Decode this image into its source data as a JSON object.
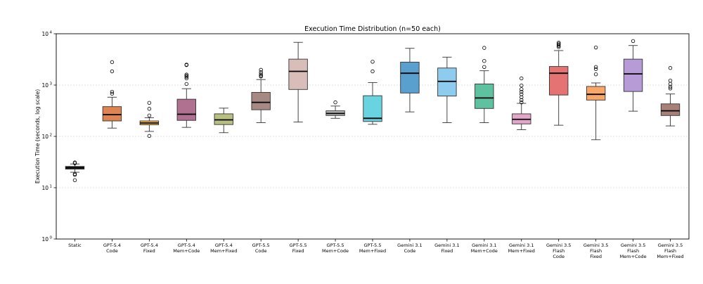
{
  "chart_data": {
    "type": "box",
    "title": "Execution Time Distribution (n=50 each)",
    "ylabel": "Execution Time (seconds, log scale)",
    "yscale": "log",
    "ylim": [
      1,
      10000
    ],
    "yticks": [
      {
        "value": 1,
        "base": "10",
        "exp": "0"
      },
      {
        "value": 10,
        "base": "10",
        "exp": "1"
      },
      {
        "value": 100,
        "base": "10",
        "exp": "2"
      },
      {
        "value": 1000,
        "base": "10",
        "exp": "3"
      },
      {
        "value": 10000,
        "base": "10",
        "exp": "4"
      }
    ],
    "grid": "horizontal",
    "categories": [
      {
        "lines": [
          "Static"
        ],
        "color": "#2b2b2b",
        "q1": 23,
        "median": 24.5,
        "q3": 26,
        "whislo": 20,
        "whishi": 29,
        "fliers": [
          31,
          30,
          18.5,
          17.8,
          14
        ]
      },
      {
        "lines": [
          "GPT-5.4",
          "Code"
        ],
        "color": "#dd8452",
        "q1": 200,
        "median": 265,
        "q3": 380,
        "whislo": 145,
        "whishi": 580,
        "fliers": [
          2800,
          1850,
          740,
          680
        ]
      },
      {
        "lines": [
          "GPT-5.4",
          "Fixed"
        ],
        "color": "#f5b74d",
        "q1": 168,
        "median": 182,
        "q3": 200,
        "whislo": 125,
        "whishi": 230,
        "fliers": [
          450,
          345,
          255,
          102
        ]
      },
      {
        "lines": [
          "GPT-5.4",
          "Mem+Code"
        ],
        "color": "#b07090",
        "q1": 205,
        "median": 270,
        "q3": 530,
        "whislo": 150,
        "whishi": 850,
        "fliers": [
          2500,
          2450,
          1600,
          1520,
          1450,
          1350,
          1050
        ]
      },
      {
        "lines": [
          "GPT-5.4",
          "Mem+Fixed"
        ],
        "color": "#b8bf7f",
        "q1": 170,
        "median": 210,
        "q3": 275,
        "whislo": 118,
        "whishi": 355,
        "fliers": []
      },
      {
        "lines": [
          "GPT-5.5",
          "Code"
        ],
        "color": "#a68983",
        "q1": 330,
        "median": 460,
        "q3": 720,
        "whislo": 185,
        "whishi": 1280,
        "fliers": [
          1980,
          1780,
          1620,
          1520,
          1470
        ]
      },
      {
        "lines": [
          "GPT-5.5",
          "Fixed"
        ],
        "color": "#d9bdb9",
        "q1": 820,
        "median": 1850,
        "q3": 3200,
        "whislo": 190,
        "whishi": 6800,
        "fliers": []
      },
      {
        "lines": [
          "GPT-5.5",
          "Mem+Code"
        ],
        "color": "#b5b5b5",
        "q1": 255,
        "median": 280,
        "q3": 315,
        "whislo": 225,
        "whishi": 390,
        "fliers": [
          460
        ]
      },
      {
        "lines": [
          "GPT-5.5",
          "Mem+Fixed"
        ],
        "color": "#67d4df",
        "q1": 195,
        "median": 225,
        "q3": 620,
        "whislo": 172,
        "whishi": 1120,
        "fliers": [
          2850,
          1850
        ]
      },
      {
        "lines": [
          "Gemini 3.1",
          "Code"
        ],
        "color": "#5aa0cf",
        "q1": 700,
        "median": 1700,
        "q3": 2800,
        "whislo": 300,
        "whishi": 5200,
        "fliers": []
      },
      {
        "lines": [
          "Gemini 3.1",
          "Fixed"
        ],
        "color": "#8dcbef",
        "q1": 610,
        "median": 1180,
        "q3": 2150,
        "whislo": 185,
        "whishi": 3500,
        "fliers": []
      },
      {
        "lines": [
          "Gemini 3.1",
          "Mem+Code"
        ],
        "color": "#5ec1a0",
        "q1": 350,
        "median": 560,
        "q3": 1050,
        "whislo": 185,
        "whishi": 1900,
        "fliers": [
          5300,
          2950,
          2250
        ]
      },
      {
        "lines": [
          "Gemini 3.1",
          "Mem+Fixed"
        ],
        "color": "#e3a5c8",
        "q1": 175,
        "median": 215,
        "q3": 275,
        "whislo": 135,
        "whishi": 440,
        "fliers": [
          1350,
          980,
          830,
          740,
          660,
          580,
          510,
          460
        ]
      },
      {
        "lines": [
          "Gemini 3.5",
          "Flash",
          "Code"
        ],
        "color": "#e57373",
        "q1": 640,
        "median": 1700,
        "q3": 2300,
        "whislo": 165,
        "whishi": 4700,
        "fliers": [
          6700,
          6400,
          6100,
          5800,
          5500
        ]
      },
      {
        "lines": [
          "Gemini 3.5",
          "Flash",
          "Fixed"
        ],
        "color": "#f8a866",
        "q1": 510,
        "median": 660,
        "q3": 940,
        "whislo": 86,
        "whishi": 1100,
        "fliers": [
          5400,
          2250,
          2050,
          1620
        ]
      },
      {
        "lines": [
          "Gemini 3.5",
          "Flash",
          "Mem+Code"
        ],
        "color": "#b79bd6",
        "q1": 750,
        "median": 1650,
        "q3": 3200,
        "whislo": 310,
        "whishi": 5900,
        "fliers": [
          7200
        ]
      },
      {
        "lines": [
          "Gemini 3.5",
          "Flash",
          "Mem+Fixed"
        ],
        "color": "#a98078",
        "q1": 255,
        "median": 315,
        "q3": 430,
        "whislo": 160,
        "whishi": 670,
        "fliers": [
          2150,
          1220,
          1050,
          930,
          860
        ]
      }
    ]
  }
}
